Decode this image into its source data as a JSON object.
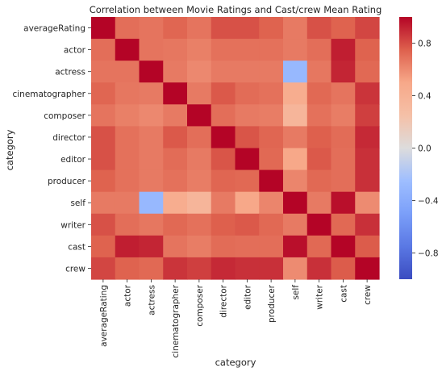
{
  "chart_data": {
    "type": "heatmap",
    "title": "Correlation between Movie Ratings and Cast/crew Mean Rating",
    "xlabel": "category",
    "ylabel": "category",
    "rows": [
      "averageRating",
      "actor",
      "actress",
      "cinematographer",
      "composer",
      "director",
      "editor",
      "producer",
      "self",
      "writer",
      "cast",
      "crew"
    ],
    "cols": [
      "averageRating",
      "actor",
      "actress",
      "cinematographer",
      "composer",
      "director",
      "editor",
      "producer",
      "self",
      "writer",
      "cast",
      "crew"
    ],
    "values": [
      [
        1.0,
        0.7,
        0.68,
        0.73,
        0.68,
        0.79,
        0.79,
        0.74,
        0.66,
        0.79,
        0.74,
        0.82
      ],
      [
        0.7,
        1.0,
        0.68,
        0.67,
        0.64,
        0.69,
        0.69,
        0.69,
        0.66,
        0.7,
        0.93,
        0.74
      ],
      [
        0.68,
        0.68,
        1.0,
        0.66,
        0.61,
        0.66,
        0.66,
        0.66,
        -0.3,
        0.67,
        0.91,
        0.72
      ],
      [
        0.73,
        0.67,
        0.66,
        1.0,
        0.66,
        0.77,
        0.71,
        0.69,
        0.45,
        0.72,
        0.68,
        0.87
      ],
      [
        0.68,
        0.64,
        0.61,
        0.66,
        1.0,
        0.7,
        0.66,
        0.65,
        0.36,
        0.69,
        0.65,
        0.84
      ],
      [
        0.79,
        0.69,
        0.66,
        0.77,
        0.7,
        1.0,
        0.78,
        0.73,
        0.66,
        0.75,
        0.71,
        0.9
      ],
      [
        0.79,
        0.69,
        0.66,
        0.71,
        0.66,
        0.78,
        1.0,
        0.72,
        0.5,
        0.77,
        0.7,
        0.88
      ],
      [
        0.74,
        0.69,
        0.66,
        0.69,
        0.65,
        0.73,
        0.72,
        1.0,
        0.62,
        0.72,
        0.7,
        0.88
      ],
      [
        0.66,
        0.66,
        -0.3,
        0.45,
        0.36,
        0.66,
        0.5,
        0.62,
        1.0,
        0.66,
        0.97,
        0.6
      ],
      [
        0.79,
        0.7,
        0.67,
        0.72,
        0.69,
        0.75,
        0.77,
        0.72,
        0.66,
        1.0,
        0.72,
        0.88
      ],
      [
        0.74,
        0.93,
        0.91,
        0.68,
        0.65,
        0.71,
        0.7,
        0.7,
        0.97,
        0.72,
        1.0,
        0.76
      ],
      [
        0.82,
        0.74,
        0.72,
        0.87,
        0.84,
        0.9,
        0.88,
        0.88,
        0.6,
        0.88,
        0.76,
        1.0
      ]
    ],
    "vmin": -1,
    "vmax": 1,
    "colormap": "coolwarm",
    "colorbar_ticks": [
      -0.8,
      -0.4,
      0.0,
      0.4,
      0.8
    ],
    "colorbar_tick_labels": [
      "−0.8",
      "−0.4",
      "0.0",
      "0.4",
      "0.8"
    ],
    "grid": false,
    "legend": "colorbar-right"
  }
}
